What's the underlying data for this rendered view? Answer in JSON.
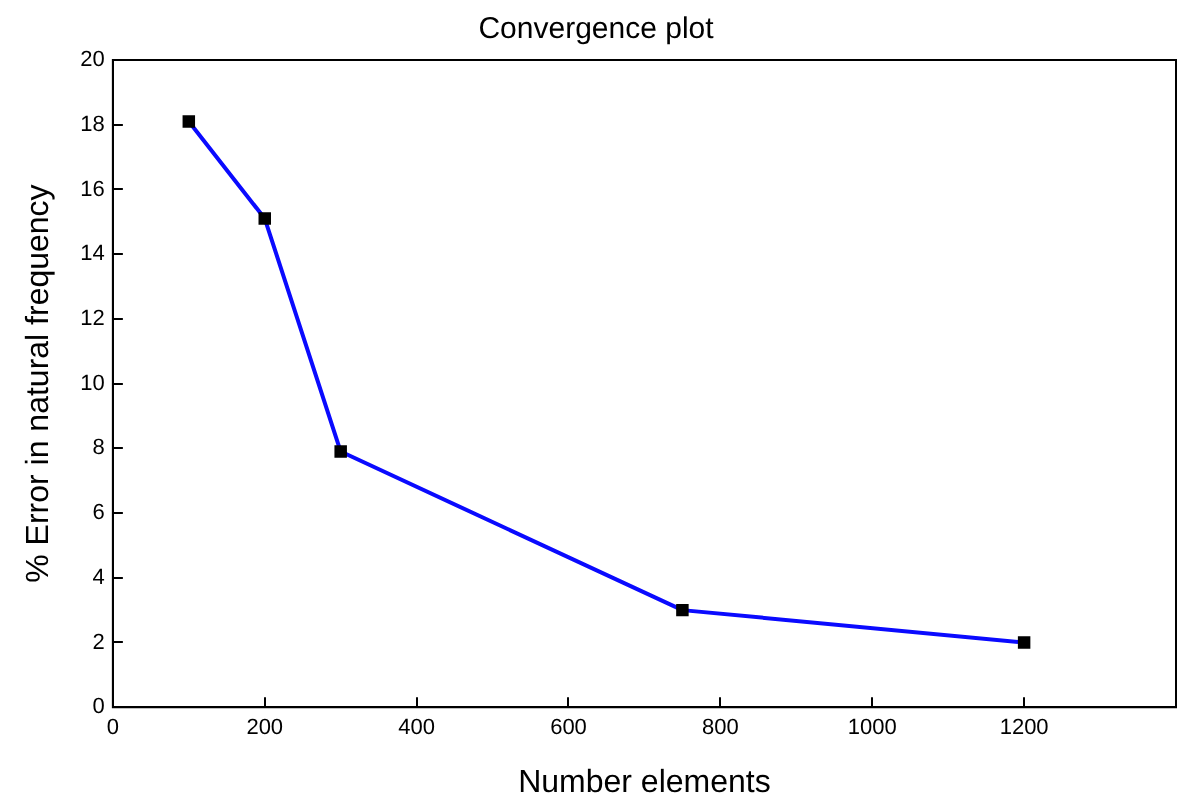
{
  "chart_data": {
    "type": "line",
    "title": "Convergence plot",
    "xlabel": "Number elements",
    "ylabel": "% Error in natural frequency",
    "x": [
      100,
      200,
      300,
      750,
      1200
    ],
    "series": [
      {
        "color": "#0a0aff",
        "values": [
          18.1,
          15.1,
          7.9,
          3.0,
          2.0
        ]
      }
    ],
    "marker": "square",
    "line_style": "solid",
    "grid": false,
    "legend": false,
    "xlim": [
      0,
      1400
    ],
    "xticks": [
      0,
      200,
      400,
      600,
      800,
      1000,
      1200,
      {
        "value": 1400,
        "label": null
      }
    ],
    "ylim": [
      0,
      20
    ],
    "yticks": [
      0,
      2,
      4,
      6,
      8,
      10,
      12,
      14,
      16,
      18,
      20
    ]
  }
}
